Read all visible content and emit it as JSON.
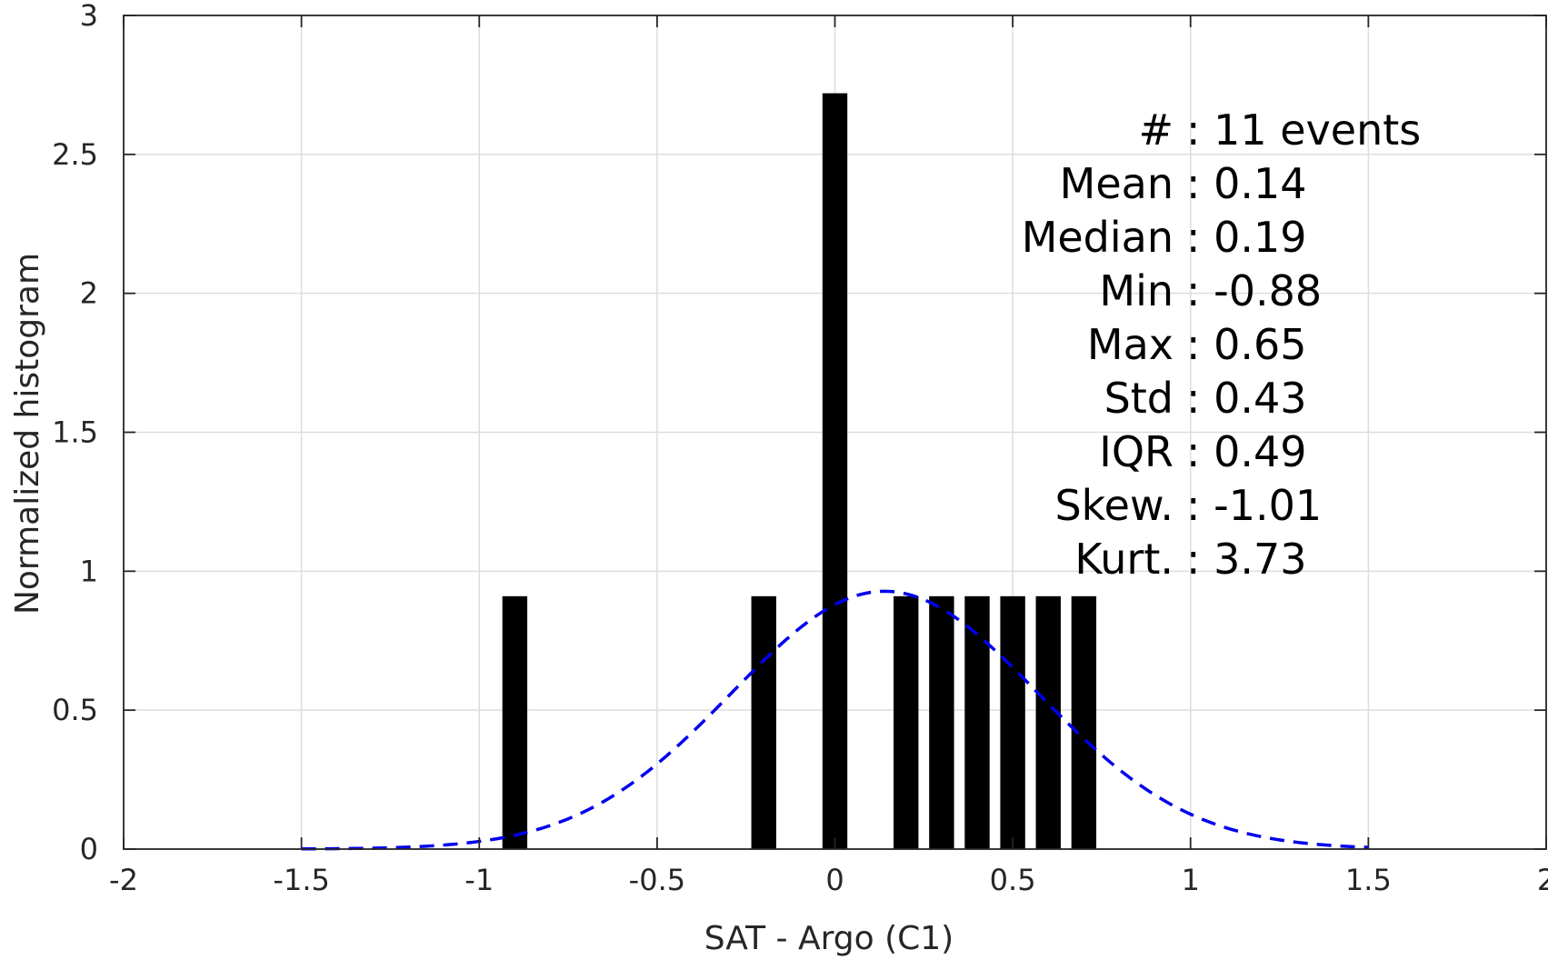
{
  "chart_data": {
    "type": "bar",
    "title": "",
    "xlabel": "SAT - Argo (C1)",
    "ylabel": "Normalized histogram",
    "xlim": [
      -2,
      2
    ],
    "ylim": [
      0,
      3
    ],
    "xticks": [
      -2,
      -1.5,
      -1,
      -0.5,
      0,
      0.5,
      1,
      1.5,
      2
    ],
    "xtick_labels": [
      "-2",
      "-1.5",
      "-1",
      "-0.5",
      "0",
      "0.5",
      "1",
      "1.5",
      "2"
    ],
    "yticks": [
      0,
      0.5,
      1,
      1.5,
      2,
      2.5,
      3
    ],
    "ytick_labels": [
      "0",
      "0.5",
      "1",
      "1.5",
      "2",
      "2.5",
      "3"
    ],
    "grid": true,
    "bin_width": 0.07,
    "bars": [
      {
        "x": -0.9,
        "value": 0.91
      },
      {
        "x": -0.2,
        "value": 0.91
      },
      {
        "x": 0.0,
        "value": 2.72
      },
      {
        "x": 0.2,
        "value": 0.91
      },
      {
        "x": 0.3,
        "value": 0.91
      },
      {
        "x": 0.4,
        "value": 0.91
      },
      {
        "x": 0.5,
        "value": 0.91
      },
      {
        "x": 0.6,
        "value": 0.91
      },
      {
        "x": 0.7,
        "value": 0.91
      }
    ],
    "bar_color": "#000000",
    "fit_curve": {
      "style": "dashed",
      "color": "#0000ee",
      "mean": 0.14,
      "std": 0.43,
      "x_range": [
        -1.5,
        1.5
      ]
    },
    "stats": [
      {
        "label": "#",
        "sep": ":",
        "value": "11 events"
      },
      {
        "label": "Mean",
        "sep": ":",
        "value": "0.14"
      },
      {
        "label": "Median",
        "sep": ":",
        "value": "0.19"
      },
      {
        "label": "Min",
        "sep": ":",
        "value": "-0.88"
      },
      {
        "label": "Max",
        "sep": ":",
        "value": "0.65"
      },
      {
        "label": "Std",
        "sep": ":",
        "value": "0.43"
      },
      {
        "label": "IQR",
        "sep": ":",
        "value": "0.49"
      },
      {
        "label": "Skew.",
        "sep": ":",
        "value": "-1.01"
      },
      {
        "label": "Kurt.",
        "sep": ":",
        "value": "3.73"
      }
    ]
  }
}
